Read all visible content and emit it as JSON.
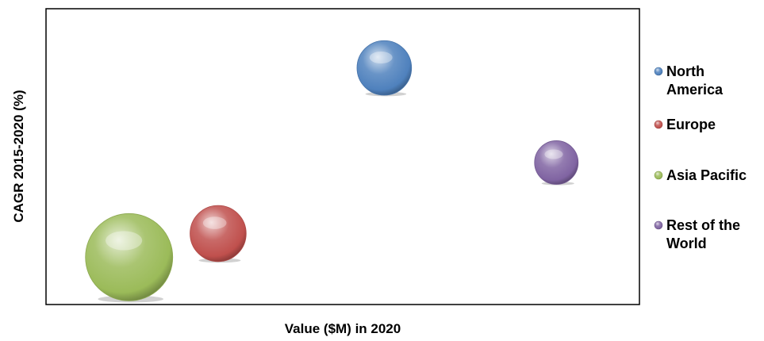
{
  "chart_data": {
    "type": "bubble",
    "title": "",
    "xlabel": "Value ($M) in 2020",
    "ylabel": "CAGR 2015-2020 (%)",
    "axis_ticks": "none",
    "grid": false,
    "legend_position": "right",
    "xlim": [
      0,
      100
    ],
    "ylim": [
      0,
      100
    ],
    "series": [
      {
        "name": "North America",
        "legend_lines": [
          "North",
          "America"
        ],
        "x": 57,
        "y": 80,
        "size": 35,
        "color": "#4f81bd"
      },
      {
        "name": "Europe",
        "legend_lines": [
          "Europe"
        ],
        "x": 29,
        "y": 24,
        "size": 36,
        "color": "#c0504d"
      },
      {
        "name": "Asia Pacific",
        "legend_lines": [
          "Asia Pacific"
        ],
        "x": 14,
        "y": 16,
        "size": 56,
        "color": "#9bbb59"
      },
      {
        "name": "Rest of the World",
        "legend_lines": [
          "Rest of the",
          "World"
        ],
        "x": 86,
        "y": 48,
        "size": 28,
        "color": "#8064a2"
      }
    ]
  }
}
